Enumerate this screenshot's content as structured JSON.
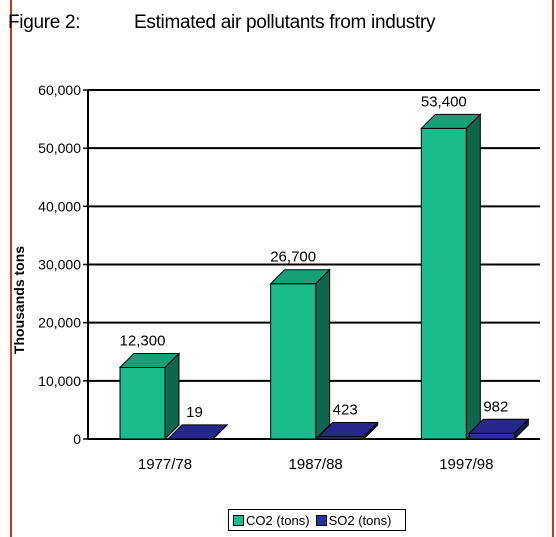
{
  "figure_label": "Figure 2:",
  "chart_data": {
    "type": "bar",
    "title": "Estimated air pollutants from industry",
    "ylabel": "Thousands tons",
    "xlabel": "",
    "ylim": [
      0,
      60000
    ],
    "yticks": [
      "0",
      "10,000",
      "20,000",
      "30,000",
      "40,000",
      "50,000",
      "60,000"
    ],
    "categories": [
      "1977/78",
      "1987/88",
      "1997/98"
    ],
    "series": [
      {
        "name": "CO2 (tons)",
        "values": [
          12300,
          26700,
          53400
        ],
        "labels": [
          "12,300",
          "26,700",
          "53,400"
        ],
        "color": "#1abc8c"
      },
      {
        "name": "SO2 (tons)",
        "values": [
          19,
          423,
          982
        ],
        "labels": [
          "19",
          "423",
          "982"
        ],
        "color": "#2b2fa0"
      }
    ],
    "grid": true,
    "legend": "bottom"
  }
}
